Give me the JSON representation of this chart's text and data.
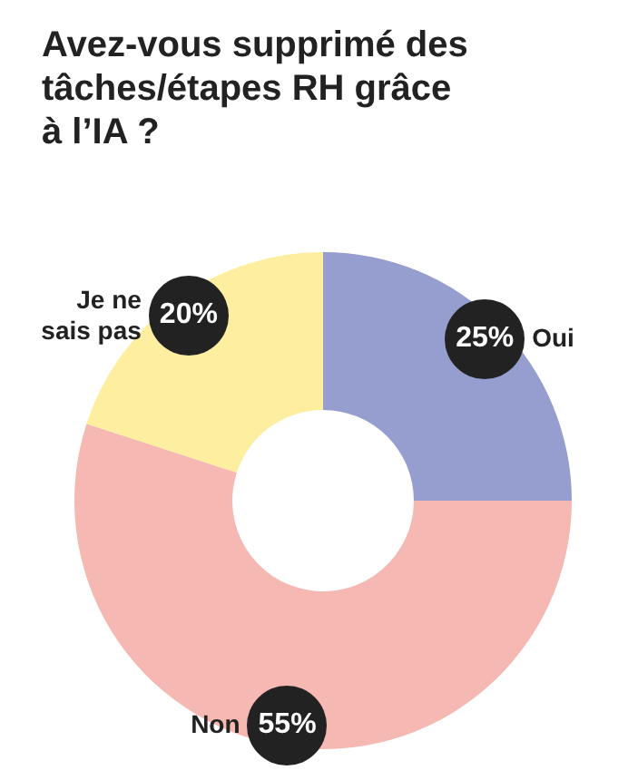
{
  "chart_data": {
    "type": "donut",
    "title": "Avez-vous supprimé des tâches/étapes RH grâce à l’IA ?",
    "categories": [
      "Oui",
      "Non",
      "Je ne sais pas"
    ],
    "values": [
      25,
      55,
      20
    ],
    "colors": [
      "#959ecf",
      "#f5b8b2",
      "#fdeea0"
    ],
    "value_labels": [
      "25%",
      "55%",
      "20%"
    ]
  }
}
